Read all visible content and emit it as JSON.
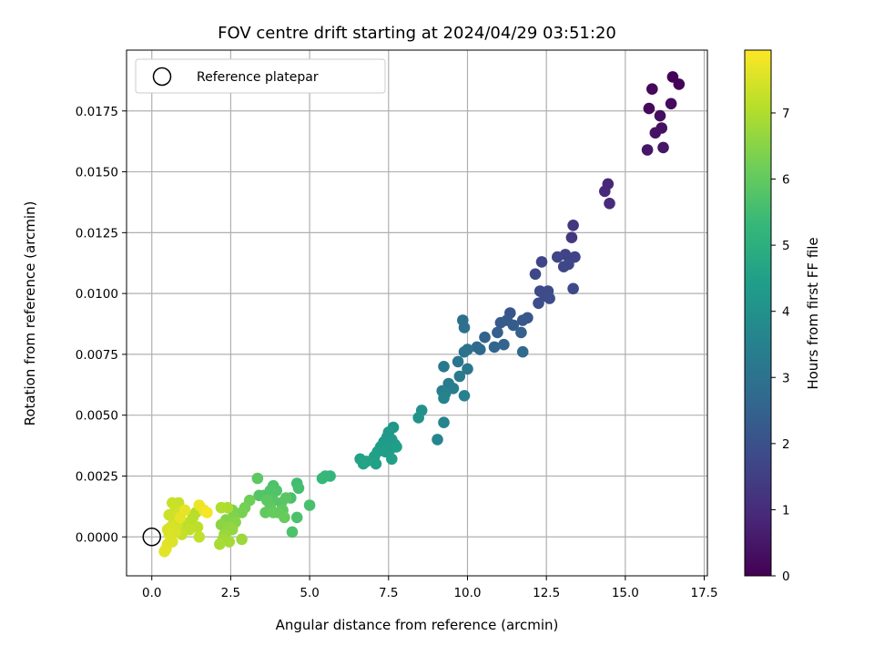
{
  "chart_data": {
    "type": "scatter",
    "title": "FOV centre drift starting at 2024/04/29 03:51:20",
    "xlabel": "Angular distance from reference (arcmin)",
    "ylabel": "Rotation from reference (arcmin)",
    "xlim": [
      -0.8,
      17.6
    ],
    "ylim": [
      -0.0016,
      0.02
    ],
    "xticks": [
      0.0,
      2.5,
      5.0,
      7.5,
      10.0,
      12.5,
      15.0,
      17.5
    ],
    "xtick_labels": [
      "0.0",
      "2.5",
      "5.0",
      "7.5",
      "10.0",
      "12.5",
      "15.0",
      "17.5"
    ],
    "yticks": [
      0.0,
      0.0025,
      0.005,
      0.0075,
      0.01,
      0.0125,
      0.015,
      0.0175
    ],
    "ytick_labels": [
      "0.0000",
      "0.0025",
      "0.0050",
      "0.0075",
      "0.0100",
      "0.0125",
      "0.0150",
      "0.0175"
    ],
    "grid": true,
    "legend": {
      "placement": "top-left",
      "entries": [
        {
          "label": "Reference platepar",
          "marker": "open-circle",
          "x": 0,
          "y": 0
        }
      ]
    },
    "colorbar": {
      "label": "Hours from first FF file",
      "colormap": "viridis",
      "range": [
        0,
        7.95
      ],
      "ticks": [
        0,
        1,
        2,
        3,
        4,
        5,
        6,
        7
      ],
      "tick_labels": [
        "0",
        "1",
        "2",
        "3",
        "4",
        "5",
        "6",
        "7"
      ]
    },
    "colors": {
      "viridis": [
        "#440154",
        "#482878",
        "#3e4989",
        "#31688e",
        "#26828e",
        "#1f9e89",
        "#35b779",
        "#6ece58",
        "#b5de2b",
        "#fde725"
      ]
    },
    "series": [
      {
        "points": [
          [
            16.5,
            0.0189,
            0.05
          ],
          [
            16.7,
            0.0186,
            0.1
          ],
          [
            15.85,
            0.0184,
            0.15
          ],
          [
            15.75,
            0.0176,
            0.2
          ],
          [
            16.45,
            0.0178,
            0.25
          ],
          [
            16.1,
            0.0173,
            0.3
          ],
          [
            16.15,
            0.0168,
            0.35
          ],
          [
            15.95,
            0.0166,
            0.4
          ],
          [
            16.2,
            0.016,
            0.45
          ],
          [
            15.7,
            0.0159,
            0.5
          ],
          [
            14.45,
            0.0145,
            0.9
          ],
          [
            14.35,
            0.0142,
            0.95
          ],
          [
            14.5,
            0.0137,
            1.0
          ],
          [
            13.35,
            0.0128,
            1.3
          ],
          [
            13.3,
            0.0123,
            1.35
          ],
          [
            13.1,
            0.0116,
            1.6
          ],
          [
            13.4,
            0.0115,
            1.62
          ],
          [
            12.85,
            0.0115,
            1.65
          ],
          [
            12.35,
            0.0113,
            1.68
          ],
          [
            13.2,
            0.0112,
            1.7
          ],
          [
            13.05,
            0.0111,
            1.72
          ],
          [
            12.15,
            0.0108,
            1.75
          ],
          [
            13.35,
            0.0102,
            1.78
          ],
          [
            12.3,
            0.0101,
            1.8
          ],
          [
            12.55,
            0.0101,
            1.82
          ],
          [
            12.45,
            0.0099,
            1.85
          ],
          [
            12.6,
            0.0098,
            1.88
          ],
          [
            12.25,
            0.0096,
            1.9
          ],
          [
            11.35,
            0.0092,
            2.1
          ],
          [
            11.9,
            0.009,
            2.15
          ],
          [
            11.75,
            0.0089,
            2.2
          ],
          [
            11.25,
            0.0089,
            2.25
          ],
          [
            11.05,
            0.0088,
            2.3
          ],
          [
            11.45,
            0.0087,
            2.35
          ],
          [
            10.95,
            0.0084,
            2.4
          ],
          [
            11.7,
            0.0084,
            2.45
          ],
          [
            10.55,
            0.0082,
            2.5
          ],
          [
            11.15,
            0.0079,
            2.55
          ],
          [
            10.85,
            0.0078,
            2.6
          ],
          [
            10.3,
            0.0078,
            2.65
          ],
          [
            10.4,
            0.0077,
            2.7
          ],
          [
            11.75,
            0.0076,
            2.75
          ],
          [
            9.85,
            0.0089,
            2.9
          ],
          [
            9.9,
            0.0086,
            2.95
          ],
          [
            10.0,
            0.0077,
            3.0
          ],
          [
            9.9,
            0.0076,
            3.05
          ],
          [
            9.7,
            0.0072,
            3.1
          ],
          [
            10.0,
            0.0069,
            3.15
          ],
          [
            9.25,
            0.007,
            3.2
          ],
          [
            9.75,
            0.0066,
            3.25
          ],
          [
            9.4,
            0.0063,
            3.3
          ],
          [
            9.55,
            0.0061,
            3.35
          ],
          [
            9.2,
            0.006,
            3.4
          ],
          [
            9.3,
            0.0059,
            3.45
          ],
          [
            9.9,
            0.0058,
            3.5
          ],
          [
            9.25,
            0.0057,
            3.55
          ],
          [
            9.25,
            0.0047,
            3.6
          ],
          [
            9.05,
            0.004,
            3.65
          ],
          [
            8.55,
            0.0052,
            4.0
          ],
          [
            8.45,
            0.0049,
            4.05
          ],
          [
            7.65,
            0.0045,
            4.2
          ],
          [
            7.5,
            0.0043,
            4.22
          ],
          [
            7.45,
            0.0041,
            4.25
          ],
          [
            7.6,
            0.004,
            4.28
          ],
          [
            7.35,
            0.0039,
            4.3
          ],
          [
            7.7,
            0.0038,
            4.32
          ],
          [
            7.25,
            0.0037,
            4.35
          ],
          [
            7.55,
            0.0036,
            4.38
          ],
          [
            7.4,
            0.0035,
            4.4
          ],
          [
            7.15,
            0.0035,
            4.42
          ],
          [
            7.75,
            0.0037,
            4.45
          ],
          [
            7.05,
            0.0033,
            4.48
          ],
          [
            7.6,
            0.0032,
            4.5
          ],
          [
            7.1,
            0.003,
            4.52
          ],
          [
            6.6,
            0.0032,
            4.55
          ],
          [
            6.7,
            0.003,
            4.58
          ],
          [
            6.8,
            0.0031,
            4.6
          ],
          [
            5.65,
            0.0025,
            5.2
          ],
          [
            5.5,
            0.0025,
            5.25
          ],
          [
            5.4,
            0.0024,
            5.3
          ],
          [
            4.6,
            0.0022,
            5.5
          ],
          [
            4.65,
            0.002,
            5.55
          ],
          [
            5.0,
            0.0013,
            5.6
          ],
          [
            4.4,
            0.0016,
            5.62
          ],
          [
            4.6,
            0.0008,
            5.65
          ],
          [
            4.45,
            0.0002,
            5.68
          ],
          [
            3.85,
            0.0021,
            5.7
          ],
          [
            3.95,
            0.0019,
            5.72
          ],
          [
            3.75,
            0.0019,
            5.75
          ],
          [
            3.55,
            0.0017,
            5.78
          ],
          [
            3.4,
            0.0017,
            5.8
          ],
          [
            3.85,
            0.0015,
            5.82
          ],
          [
            4.1,
            0.0014,
            5.85
          ],
          [
            4.25,
            0.0016,
            5.88
          ],
          [
            3.65,
            0.0015,
            5.9
          ],
          [
            3.35,
            0.0024,
            5.92
          ],
          [
            3.75,
            0.0012,
            5.95
          ],
          [
            4.15,
            0.0011,
            5.97
          ],
          [
            3.6,
            0.001,
            6.0
          ],
          [
            4.0,
            0.001,
            6.02
          ],
          [
            3.85,
            0.001,
            6.05
          ],
          [
            4.2,
            0.0008,
            6.08
          ],
          [
            3.1,
            0.0015,
            6.2
          ],
          [
            2.95,
            0.0012,
            6.25
          ],
          [
            2.85,
            0.001,
            6.3
          ],
          [
            2.55,
            0.0011,
            6.35
          ],
          [
            2.6,
            0.0008,
            6.4
          ],
          [
            2.35,
            0.0007,
            6.45
          ],
          [
            2.65,
            0.0006,
            6.5
          ],
          [
            2.2,
            0.0005,
            6.55
          ],
          [
            2.45,
            0.0004,
            6.6
          ],
          [
            2.55,
            0.0003,
            6.65
          ],
          [
            2.3,
            0.0001,
            6.7
          ],
          [
            2.85,
            -0.0001,
            6.75
          ],
          [
            2.25,
            -0.0001,
            6.8
          ],
          [
            2.45,
            -0.0002,
            6.85
          ],
          [
            2.15,
            -0.0003,
            6.9
          ],
          [
            2.4,
            0.0012,
            6.95
          ],
          [
            2.2,
            0.0012,
            7.0
          ],
          [
            1.4,
            0.001,
            7.05
          ],
          [
            1.3,
            0.0008,
            7.1
          ],
          [
            1.2,
            0.0006,
            7.12
          ],
          [
            1.05,
            0.0005,
            7.15
          ],
          [
            1.45,
            0.0004,
            7.18
          ],
          [
            1.2,
            0.0003,
            7.2
          ],
          [
            1.5,
            0.0,
            7.22
          ],
          [
            0.95,
            0.0001,
            7.25
          ],
          [
            0.85,
            0.0014,
            7.28
          ],
          [
            0.65,
            0.0014,
            7.3
          ],
          [
            0.75,
            0.0012,
            7.32
          ],
          [
            0.55,
            0.0009,
            7.35
          ],
          [
            0.85,
            0.001,
            7.38
          ],
          [
            0.7,
            0.0007,
            7.4
          ],
          [
            0.8,
            0.0005,
            7.42
          ],
          [
            0.6,
            0.0004,
            7.45
          ],
          [
            0.5,
            0.0003,
            7.48
          ],
          [
            0.75,
            0.0002,
            7.5
          ],
          [
            0.55,
            0.0001,
            7.52
          ],
          [
            0.65,
            -0.0002,
            7.55
          ],
          [
            0.5,
            -0.0003,
            7.58
          ],
          [
            0.45,
            -0.0005,
            7.6
          ],
          [
            0.4,
            -0.0006,
            7.62
          ],
          [
            0.9,
            0.0008,
            7.65
          ],
          [
            1.05,
            0.0011,
            7.68
          ],
          [
            1.5,
            0.0013,
            7.72
          ],
          [
            1.65,
            0.0011,
            7.78
          ],
          [
            1.75,
            0.001,
            7.85
          ]
        ]
      }
    ]
  }
}
